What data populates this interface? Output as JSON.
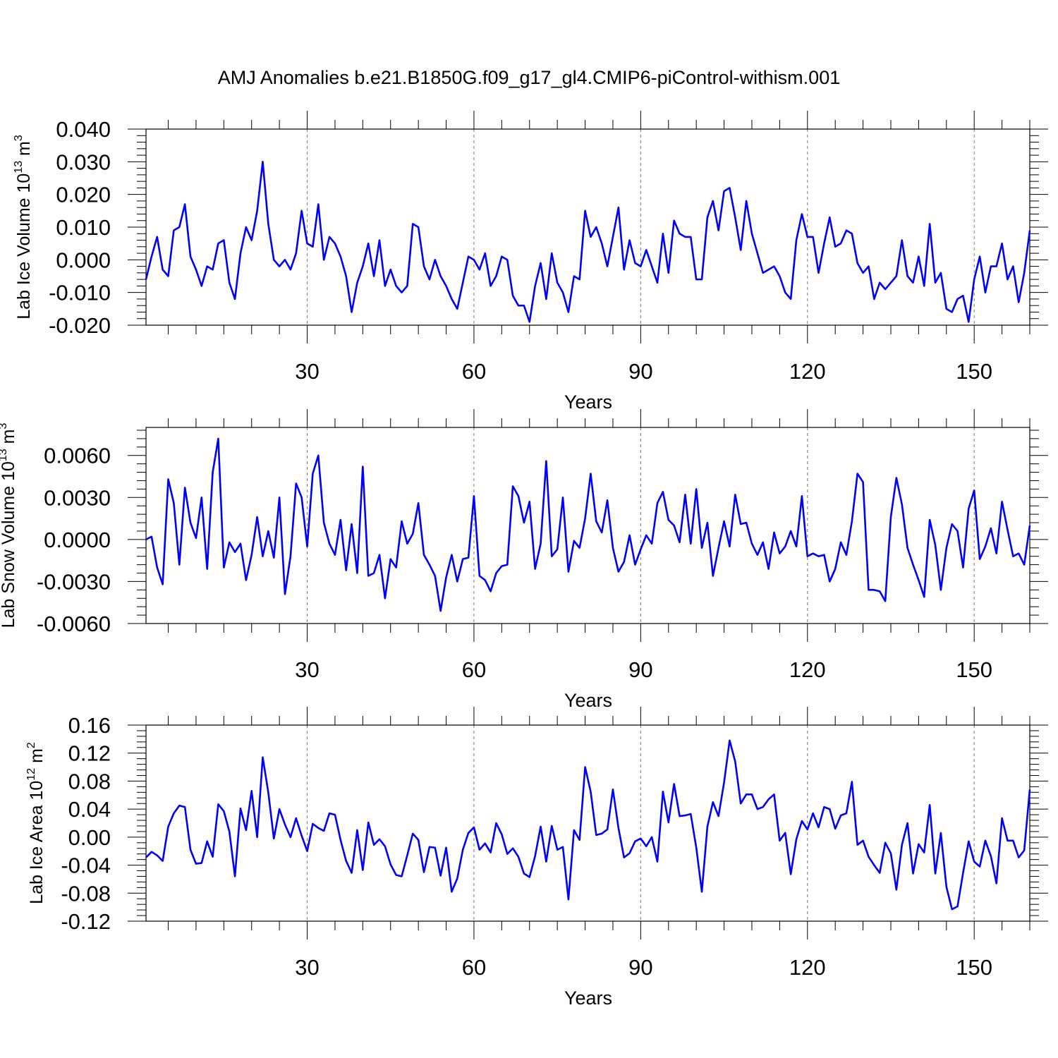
{
  "title": "AMJ Anomalies b.e21.B1850G.f09_g17_gl4.CMIP6-piControl-withism.001",
  "colors": {
    "line": "#0000ff",
    "axis": "#000000",
    "gridline": "#777777"
  },
  "chart_data": [
    {
      "type": "line",
      "ylabel_main": "Lab Ice Volume 10",
      "ylabel_exp": "13",
      "ylabel_unit": " m",
      "ylabel_unit_exp": "3",
      "xlabel": "Years",
      "xlim": [
        1,
        160
      ],
      "ylim": [
        -0.02,
        0.04
      ],
      "xticks": [
        30,
        60,
        90,
        120,
        150
      ],
      "yticks": [
        "-0.020",
        "-0.010",
        "0.000",
        "0.010",
        "0.020",
        "0.030",
        "0.040"
      ],
      "ytick_values": [
        -0.02,
        -0.01,
        0,
        0.01,
        0.02,
        0.03,
        0.04
      ],
      "grid": "vertical dashed at x ticks",
      "series": [
        {
          "x_start": 1,
          "values": [
            -0.006,
            0.001,
            0.007,
            -0.003,
            -0.005,
            0.009,
            0.01,
            0.017,
            0.001,
            -0.003,
            -0.008,
            -0.002,
            -0.003,
            0.005,
            0.006,
            -0.007,
            -0.012,
            0.002,
            0.01,
            0.006,
            0.015,
            0.03,
            0.011,
            0.0,
            -0.002,
            0.0,
            -0.003,
            0.002,
            0.015,
            0.005,
            0.004,
            0.017,
            0.0,
            0.007,
            0.005,
            0.001,
            -0.005,
            -0.016,
            -0.007,
            -0.002,
            0.005,
            -0.005,
            0.006,
            -0.008,
            -0.003,
            -0.008,
            -0.01,
            -0.008,
            0.011,
            0.01,
            -0.002,
            -0.006,
            0.0,
            -0.005,
            -0.008,
            -0.012,
            -0.015,
            -0.007,
            0.001,
            0.0,
            -0.003,
            0.002,
            -0.008,
            -0.005,
            0.001,
            0.0,
            -0.011,
            -0.014,
            -0.014,
            -0.019,
            -0.008,
            -0.001,
            -0.012,
            0.002,
            -0.007,
            -0.01,
            -0.016,
            -0.005,
            -0.006,
            0.015,
            0.007,
            0.01,
            0.005,
            -0.002,
            0.007,
            0.016,
            -0.003,
            0.006,
            -0.001,
            -0.002,
            0.003,
            -0.002,
            -0.007,
            0.008,
            -0.004,
            0.012,
            0.008,
            0.007,
            0.007,
            -0.006,
            -0.006,
            0.013,
            0.018,
            0.009,
            0.021,
            0.022,
            0.013,
            0.003,
            0.018,
            0.008,
            0.002,
            -0.004,
            -0.003,
            -0.002,
            -0.005,
            -0.01,
            -0.012,
            0.006,
            0.014,
            0.007,
            0.007,
            -0.004,
            0.005,
            0.013,
            0.004,
            0.005,
            0.009,
            0.008,
            -0.001,
            -0.004,
            -0.002,
            -0.012,
            -0.007,
            -0.009,
            -0.007,
            -0.005,
            0.006,
            -0.005,
            -0.007,
            0.001,
            -0.008,
            0.011,
            -0.007,
            -0.004,
            -0.015,
            -0.016,
            -0.012,
            -0.011,
            -0.019,
            -0.006,
            0.001,
            -0.01,
            -0.002,
            -0.002,
            0.005,
            -0.006,
            -0.002,
            -0.013,
            -0.004,
            0.009
          ]
        }
      ]
    },
    {
      "type": "line",
      "ylabel_main": "Lab Snow Volume 10",
      "ylabel_exp": "13",
      "ylabel_unit": " m",
      "ylabel_unit_exp": "3",
      "xlabel": "Years",
      "xlim": [
        1,
        160
      ],
      "ylim": [
        -0.006,
        0.008
      ],
      "xticks": [
        30,
        60,
        90,
        120,
        150
      ],
      "yticks": [
        "-0.0060",
        "-0.0030",
        "0.0000",
        "0.0030",
        "0.0060"
      ],
      "ytick_values": [
        -0.006,
        -0.003,
        0,
        0.003,
        0.006
      ],
      "grid": "vertical dashed at x ticks",
      "series": [
        {
          "x_start": 1,
          "values": [
            0.0,
            0.0002,
            -0.002,
            -0.0032,
            0.0043,
            0.0026,
            -0.0018,
            0.0037,
            0.0012,
            0.0001,
            0.003,
            -0.0021,
            0.0048,
            0.0072,
            -0.002,
            -0.0002,
            -0.0009,
            -0.0003,
            -0.0029,
            -0.0011,
            0.0016,
            -0.0012,
            0.0006,
            -0.0013,
            0.003,
            -0.0039,
            -0.0012,
            0.004,
            0.003,
            -0.0005,
            0.0047,
            0.006,
            0.0012,
            -0.0003,
            -0.0011,
            0.0014,
            -0.0022,
            0.0011,
            -0.0024,
            0.0052,
            -0.0026,
            -0.0024,
            -0.0011,
            -0.0042,
            -0.0014,
            -0.002,
            0.0013,
            -0.0003,
            0.0004,
            0.0026,
            -0.0011,
            -0.0018,
            -0.0026,
            -0.0051,
            -0.0027,
            -0.0011,
            -0.003,
            -0.0014,
            -0.0013,
            0.0031,
            -0.0026,
            -0.0029,
            -0.0037,
            -0.0024,
            -0.0019,
            -0.0018,
            0.0038,
            0.0031,
            0.0012,
            0.0027,
            -0.0021,
            -0.0003,
            0.0056,
            -0.0012,
            -0.0007,
            0.003,
            -0.0023,
            -0.0001,
            -0.0006,
            0.0015,
            0.0047,
            0.0013,
            0.0005,
            0.0028,
            -0.0006,
            -0.0023,
            -0.0016,
            0.0003,
            -0.0018,
            -0.0007,
            0.0003,
            -0.0003,
            0.0026,
            0.0034,
            0.0014,
            0.001,
            -0.0002,
            0.0032,
            -0.0003,
            0.0036,
            -0.0006,
            0.0012,
            -0.0026,
            -0.0006,
            0.0013,
            -0.0005,
            0.0032,
            0.0011,
            0.0012,
            -0.0003,
            -0.0011,
            -0.0002,
            -0.0021,
            0.0005,
            -0.001,
            -0.0005,
            0.0006,
            -0.0005,
            0.0031,
            -0.0012,
            -0.001,
            -0.0012,
            -0.0011,
            -0.003,
            -0.0021,
            -0.0002,
            -0.0011,
            0.0013,
            0.0047,
            0.0041,
            -0.0036,
            -0.0036,
            -0.0037,
            -0.0044,
            0.0016,
            0.0044,
            0.0025,
            -0.0006,
            -0.0018,
            -0.0029,
            -0.0041,
            0.0014,
            -0.0004,
            -0.0036,
            -0.0006,
            0.0011,
            0.0006,
            -0.002,
            0.0022,
            0.0035,
            -0.0014,
            -0.0005,
            0.0008,
            -0.001,
            0.0027,
            0.0007,
            -0.0012,
            -0.001,
            -0.0018,
            0.001
          ]
        }
      ]
    },
    {
      "type": "line",
      "ylabel_main": "Lab Ice Area 10",
      "ylabel_exp": "12",
      "ylabel_unit": " m",
      "ylabel_unit_exp": "2",
      "xlabel": "Years",
      "xlim": [
        1,
        160
      ],
      "ylim": [
        -0.12,
        0.16
      ],
      "xticks": [
        30,
        60,
        90,
        120,
        150
      ],
      "yticks": [
        "-0.12",
        "-0.08",
        "-0.04",
        "0.00",
        "0.04",
        "0.08",
        "0.12",
        "0.16"
      ],
      "ytick_values": [
        -0.12,
        -0.08,
        -0.04,
        0,
        0.04,
        0.08,
        0.12,
        0.16
      ],
      "grid": "vertical dashed at x ticks",
      "series": [
        {
          "x_start": 1,
          "values": [
            -0.029,
            -0.021,
            -0.026,
            -0.034,
            0.015,
            0.034,
            0.045,
            0.043,
            -0.018,
            -0.038,
            -0.037,
            -0.006,
            -0.028,
            0.047,
            0.037,
            0.008,
            -0.056,
            0.041,
            0.01,
            0.066,
            0.0,
            0.114,
            0.064,
            -0.002,
            0.04,
            0.018,
            0.0,
            0.027,
            0.002,
            -0.02,
            0.019,
            0.013,
            0.009,
            0.034,
            0.032,
            -0.004,
            -0.034,
            -0.051,
            0.01,
            -0.047,
            0.021,
            -0.011,
            -0.003,
            -0.013,
            -0.039,
            -0.054,
            -0.056,
            -0.026,
            0.005,
            -0.004,
            -0.05,
            -0.014,
            -0.015,
            -0.055,
            -0.015,
            -0.078,
            -0.059,
            -0.018,
            0.006,
            0.014,
            -0.018,
            -0.009,
            -0.022,
            0.02,
            0.004,
            -0.024,
            -0.016,
            -0.028,
            -0.052,
            -0.057,
            -0.027,
            0.015,
            -0.035,
            0.016,
            -0.018,
            -0.014,
            -0.089,
            0.01,
            -0.004,
            0.1,
            0.065,
            0.003,
            0.005,
            0.011,
            0.068,
            0.013,
            -0.029,
            -0.023,
            -0.006,
            -0.002,
            -0.013,
            0.0,
            -0.035,
            0.065,
            0.021,
            0.076,
            0.03,
            0.031,
            0.033,
            -0.015,
            -0.078,
            0.015,
            0.05,
            0.03,
            0.078,
            0.138,
            0.108,
            0.048,
            0.061,
            0.061,
            0.04,
            0.043,
            0.054,
            0.061,
            -0.005,
            0.006,
            -0.053,
            -0.003,
            0.023,
            0.011,
            0.034,
            0.014,
            0.043,
            0.04,
            0.012,
            0.031,
            0.034,
            0.079,
            -0.011,
            -0.005,
            -0.028,
            -0.04,
            -0.051,
            -0.008,
            -0.023,
            -0.075,
            -0.011,
            0.02,
            -0.052,
            -0.01,
            -0.022,
            0.046,
            -0.052,
            0.006,
            -0.071,
            -0.103,
            -0.099,
            -0.051,
            -0.006,
            -0.035,
            -0.042,
            -0.005,
            -0.027,
            -0.066,
            0.027,
            -0.005,
            -0.005,
            -0.029,
            -0.019,
            0.068
          ]
        }
      ]
    }
  ]
}
